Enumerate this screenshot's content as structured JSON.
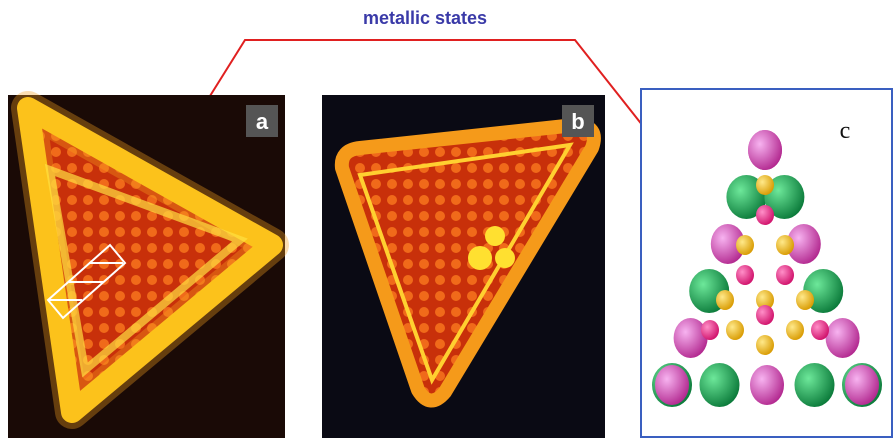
{
  "title": "metallic states",
  "panels": [
    {
      "label": "a"
    },
    {
      "label": "b"
    },
    {
      "label": "c"
    }
  ]
}
